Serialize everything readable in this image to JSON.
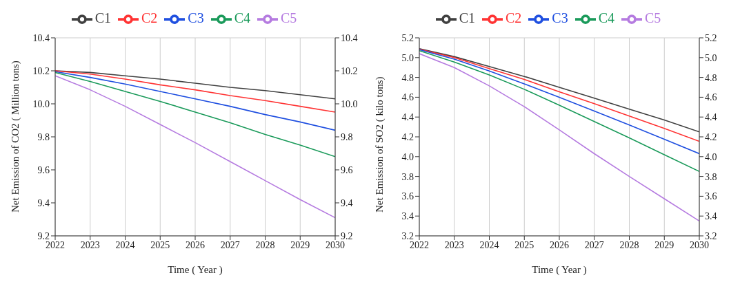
{
  "chart_data": [
    {
      "type": "line",
      "xlabel": "Time ( Year )",
      "ylabel": "Net Emission of CO2 ( Million tons)",
      "x": [
        2022,
        2023,
        2024,
        2025,
        2026,
        2027,
        2028,
        2029,
        2030
      ],
      "series": [
        {
          "name": "C1",
          "color": "#404040",
          "values": [
            10.2,
            10.19,
            10.17,
            10.15,
            10.125,
            10.1,
            10.08,
            10.055,
            10.03
          ]
        },
        {
          "name": "C2",
          "color": "#ff3333",
          "values": [
            10.2,
            10.18,
            10.15,
            10.115,
            10.085,
            10.05,
            10.02,
            9.985,
            9.95
          ]
        },
        {
          "name": "C3",
          "color": "#1f4fe0",
          "values": [
            10.195,
            10.16,
            10.12,
            10.075,
            10.03,
            9.985,
            9.935,
            9.89,
            9.84
          ]
        },
        {
          "name": "C4",
          "color": "#1a9a5a",
          "values": [
            10.19,
            10.135,
            10.075,
            10.015,
            9.95,
            9.885,
            9.815,
            9.75,
            9.68
          ]
        },
        {
          "name": "C5",
          "color": "#b57be0",
          "values": [
            10.17,
            10.085,
            9.985,
            9.875,
            9.765,
            9.65,
            9.535,
            9.42,
            9.31
          ]
        }
      ],
      "xlim": [
        2022,
        2030
      ],
      "xticks": [
        2022,
        2023,
        2024,
        2025,
        2026,
        2027,
        2028,
        2029,
        2030
      ],
      "ylim": [
        9.2,
        10.4
      ],
      "yticks": [
        9.2,
        9.4,
        9.6,
        9.8,
        {
          "value": 10,
          "label": "10.0"
        },
        10.2,
        10.4
      ],
      "y2lim": [
        9.2,
        10.4
      ],
      "y2ticks": [
        9.2,
        9.4,
        9.6,
        9.8,
        {
          "value": 10,
          "label": "10.0"
        },
        10.2,
        10.4
      ],
      "grid": true,
      "legend": "top",
      "marker": "none",
      "line_style": "solid"
    },
    {
      "type": "line",
      "xlabel": "Time ( Year )",
      "ylabel": "Net Emission of SO2 ( kilo tons)",
      "x": [
        2022,
        2023,
        2024,
        2025,
        2026,
        2027,
        2028,
        2029,
        2030
      ],
      "series": [
        {
          "name": "C1",
          "color": "#404040",
          "values": [
            5.09,
            5.01,
            4.91,
            4.81,
            4.7,
            4.59,
            4.48,
            4.37,
            4.25
          ]
        },
        {
          "name": "C2",
          "color": "#ff3333",
          "values": [
            5.085,
            5.0,
            4.89,
            4.78,
            4.655,
            4.535,
            4.41,
            4.285,
            4.155
          ]
        },
        {
          "name": "C3",
          "color": "#1f4fe0",
          "values": [
            5.08,
            4.985,
            4.865,
            4.735,
            4.6,
            4.46,
            4.32,
            4.175,
            4.03
          ]
        },
        {
          "name": "C4",
          "color": "#1a9a5a",
          "values": [
            5.07,
            4.955,
            4.825,
            4.68,
            4.52,
            4.355,
            4.19,
            4.02,
            3.85
          ]
        },
        {
          "name": "C5",
          "color": "#b57be0",
          "values": [
            5.04,
            4.9,
            4.715,
            4.505,
            4.27,
            4.03,
            3.8,
            3.575,
            3.35
          ]
        }
      ],
      "xlim": [
        2022,
        2030
      ],
      "xticks": [
        2022,
        2023,
        2024,
        2025,
        2026,
        2027,
        2028,
        2029,
        2030
      ],
      "ylim": [
        3.2,
        5.2
      ],
      "yticks": [
        3.2,
        3.4,
        3.6,
        3.8,
        {
          "value": 4,
          "label": "4.0"
        },
        4.2,
        4.4,
        4.6,
        4.8,
        {
          "value": 5,
          "label": "5.0"
        },
        5.2
      ],
      "y2lim": [
        3.2,
        5.2
      ],
      "y2ticks": [
        3.2,
        3.4,
        3.6,
        3.8,
        {
          "value": 4,
          "label": "4.0"
        },
        4.2,
        4.4,
        4.6,
        4.8,
        {
          "value": 5,
          "label": "5.0"
        },
        5.2
      ],
      "grid": true,
      "legend": "top",
      "marker": "none",
      "line_style": "solid"
    }
  ]
}
